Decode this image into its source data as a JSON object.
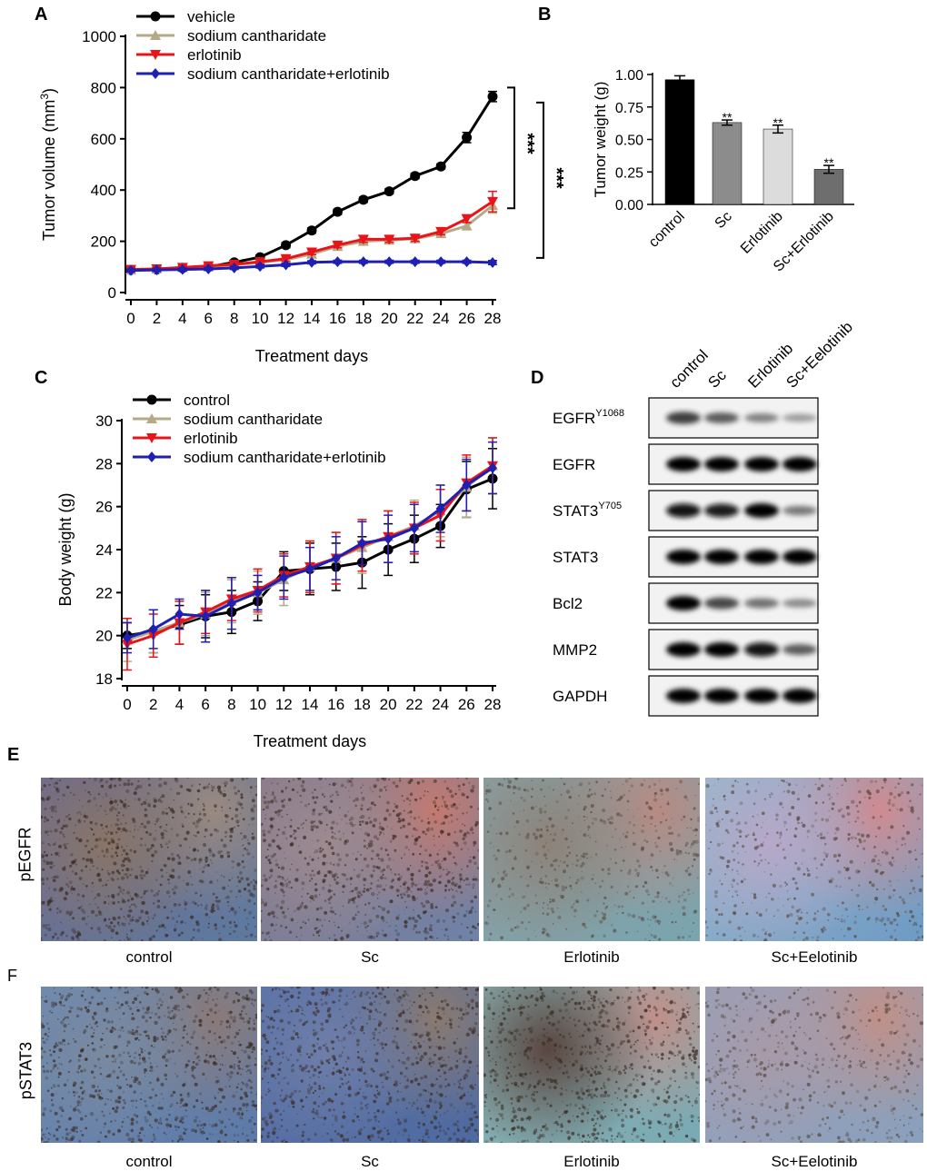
{
  "colors": {
    "vehicle": "#000000",
    "sodium_cantharidate": "#b5aa86",
    "erlotinib": "#e8141a",
    "combo": "#1f1fb3"
  },
  "chart_data": [
    {
      "panel": "A",
      "type": "line",
      "title": "",
      "xlabel": "Treatment days",
      "ylabel": "Tumor volume (mm3)",
      "ylabel_main": "Tumor volume (mm",
      "ylabel_sup": "3",
      "ylabel_tail": ")",
      "xlim": [
        0,
        28
      ],
      "ylim": [
        0,
        1000
      ],
      "x": [
        0,
        2,
        4,
        6,
        8,
        10,
        12,
        14,
        16,
        18,
        20,
        22,
        24,
        26,
        28
      ],
      "yticks": [
        0,
        200,
        400,
        600,
        800,
        1000
      ],
      "legend": "top-left",
      "series": [
        {
          "name": "vehicle",
          "marker": "circle",
          "values": [
            88,
            90,
            95,
            100,
            118,
            138,
            185,
            242,
            315,
            362,
            395,
            455,
            492,
            605,
            765
          ],
          "errors": [
            8,
            8,
            8,
            8,
            8,
            8,
            10,
            10,
            10,
            10,
            10,
            10,
            10,
            20,
            20
          ]
        },
        {
          "name": "sodium cantharidate",
          "marker": "triangle-up",
          "values": [
            88,
            92,
            98,
            102,
            108,
            118,
            128,
            150,
            180,
            200,
            205,
            210,
            230,
            260,
            340
          ],
          "errors": [
            8,
            8,
            8,
            8,
            8,
            8,
            8,
            10,
            10,
            10,
            10,
            10,
            10,
            15,
            30
          ]
        },
        {
          "name": "erlotinib",
          "marker": "triangle-down",
          "values": [
            90,
            92,
            98,
            104,
            110,
            120,
            132,
            158,
            185,
            208,
            208,
            212,
            238,
            288,
            355
          ],
          "errors": [
            8,
            8,
            8,
            8,
            8,
            8,
            10,
            10,
            10,
            12,
            12,
            12,
            12,
            15,
            40
          ]
        },
        {
          "name": "sodium cantharidate+erlotinib",
          "marker": "diamond",
          "values": [
            86,
            88,
            90,
            92,
            96,
            102,
            108,
            118,
            120,
            120,
            120,
            120,
            120,
            120,
            117
          ],
          "errors": [
            6,
            6,
            6,
            6,
            6,
            6,
            6,
            6,
            6,
            6,
            6,
            6,
            6,
            6,
            8
          ]
        }
      ],
      "annotations": [
        "***",
        "***"
      ]
    },
    {
      "panel": "B",
      "type": "bar",
      "title": "",
      "xlabel": "",
      "ylabel": "Tumor weight (g)",
      "ylim": [
        0,
        1.0
      ],
      "yticks": [
        "0.00",
        "0.25",
        "0.50",
        "0.75",
        "1.00"
      ],
      "categories": [
        "control",
        "Sc",
        "Erlotinib",
        "Sc+Erlotinib"
      ],
      "values": [
        0.96,
        0.63,
        0.58,
        0.27
      ],
      "errors": [
        0.03,
        0.02,
        0.03,
        0.03
      ],
      "bar_colors": [
        "#000000",
        "#8c8c8c",
        "#dcdcdc",
        "#6e6e6e"
      ],
      "significance": [
        "",
        "**",
        "**",
        "**"
      ]
    },
    {
      "panel": "C",
      "type": "line",
      "title": "",
      "xlabel": "Treatment days",
      "ylabel": "Body weight (g)",
      "xlim": [
        0,
        28
      ],
      "ylim": [
        18,
        30
      ],
      "x": [
        0,
        2,
        4,
        6,
        8,
        10,
        12,
        14,
        16,
        18,
        20,
        22,
        24,
        26,
        28
      ],
      "yticks": [
        18,
        20,
        22,
        24,
        26,
        28,
        30
      ],
      "legend": "top-left",
      "series": [
        {
          "name": "control",
          "marker": "circle",
          "values": [
            20.0,
            20.2,
            20.5,
            20.9,
            21.1,
            21.6,
            23.0,
            23.1,
            23.2,
            23.4,
            24.0,
            24.5,
            25.1,
            26.8,
            27.3
          ],
          "errors": [
            0.6,
            1.0,
            0.9,
            1.0,
            1.0,
            0.9,
            0.9,
            1.2,
            1.1,
            1.2,
            1.2,
            1.1,
            1.0,
            1.3,
            1.4
          ]
        },
        {
          "name": "sodium cantharidate",
          "marker": "triangle-up",
          "values": [
            19.8,
            20.2,
            20.6,
            21.0,
            21.6,
            22.0,
            22.6,
            23.2,
            23.6,
            24.1,
            24.6,
            25.1,
            25.8,
            26.9,
            27.9
          ],
          "errors": [
            1.0,
            1.0,
            1.0,
            1.0,
            1.0,
            1.0,
            1.2,
            1.2,
            1.2,
            1.2,
            1.2,
            1.2,
            1.2,
            1.4,
            1.3
          ]
        },
        {
          "name": "erlotinib",
          "marker": "triangle-down",
          "values": [
            19.6,
            20.0,
            20.6,
            21.1,
            21.7,
            22.1,
            22.8,
            23.2,
            23.6,
            24.2,
            24.6,
            25.0,
            25.6,
            27.1,
            27.9
          ],
          "errors": [
            1.2,
            1.0,
            1.0,
            1.0,
            1.0,
            1.0,
            1.0,
            1.2,
            1.2,
            1.2,
            1.2,
            1.2,
            1.2,
            1.3,
            1.3
          ]
        },
        {
          "name": "sodium cantharidate+erlotinib",
          "marker": "diamond",
          "values": [
            19.9,
            20.3,
            21.0,
            20.9,
            21.5,
            22.0,
            22.7,
            23.1,
            23.6,
            24.3,
            24.5,
            25.0,
            25.9,
            27.0,
            27.8
          ],
          "errors": [
            0.7,
            0.9,
            0.7,
            1.2,
            1.2,
            0.8,
            1.0,
            1.0,
            1.0,
            1.0,
            1.1,
            1.1,
            1.1,
            1.2,
            1.2
          ]
        }
      ]
    }
  ],
  "panel_a": {
    "letter": "A"
  },
  "panel_b": {
    "letter": "B"
  },
  "panel_c": {
    "letter": "C"
  },
  "panel_d": {
    "letter": "D",
    "columns": [
      "control",
      "Sc",
      "Erlotinib",
      "Sc+Eelotinib"
    ],
    "rows": [
      {
        "label": "EGFR",
        "sup": "Y1068",
        "intensities": [
          0.75,
          0.6,
          0.4,
          0.25
        ]
      },
      {
        "label": "EGFR",
        "sup": "",
        "intensities": [
          1,
          1,
          1,
          1
        ]
      },
      {
        "label": "STAT3",
        "sup": "Y705",
        "intensities": [
          0.95,
          0.9,
          1.0,
          0.45
        ]
      },
      {
        "label": "STAT3",
        "sup": "",
        "intensities": [
          1,
          1,
          1,
          1
        ]
      },
      {
        "label": "Bcl2",
        "sup": "",
        "intensities": [
          1.0,
          0.7,
          0.5,
          0.35
        ]
      },
      {
        "label": "MMP2",
        "sup": "",
        "intensities": [
          1,
          1,
          0.95,
          0.6
        ]
      },
      {
        "label": "GAPDH",
        "sup": "",
        "intensities": [
          1,
          1,
          1,
          1
        ]
      }
    ]
  },
  "panel_e": {
    "letter": "E",
    "row_label": "pEGFR",
    "captions": [
      "control",
      "Sc",
      "Erlotinib",
      "Sc+Eelotinib"
    ]
  },
  "panel_f": {
    "letter": "F",
    "row_label": "pSTAT3",
    "captions": [
      "control",
      "Sc",
      "Erlotinib",
      "Sc+Eelotinib"
    ]
  }
}
